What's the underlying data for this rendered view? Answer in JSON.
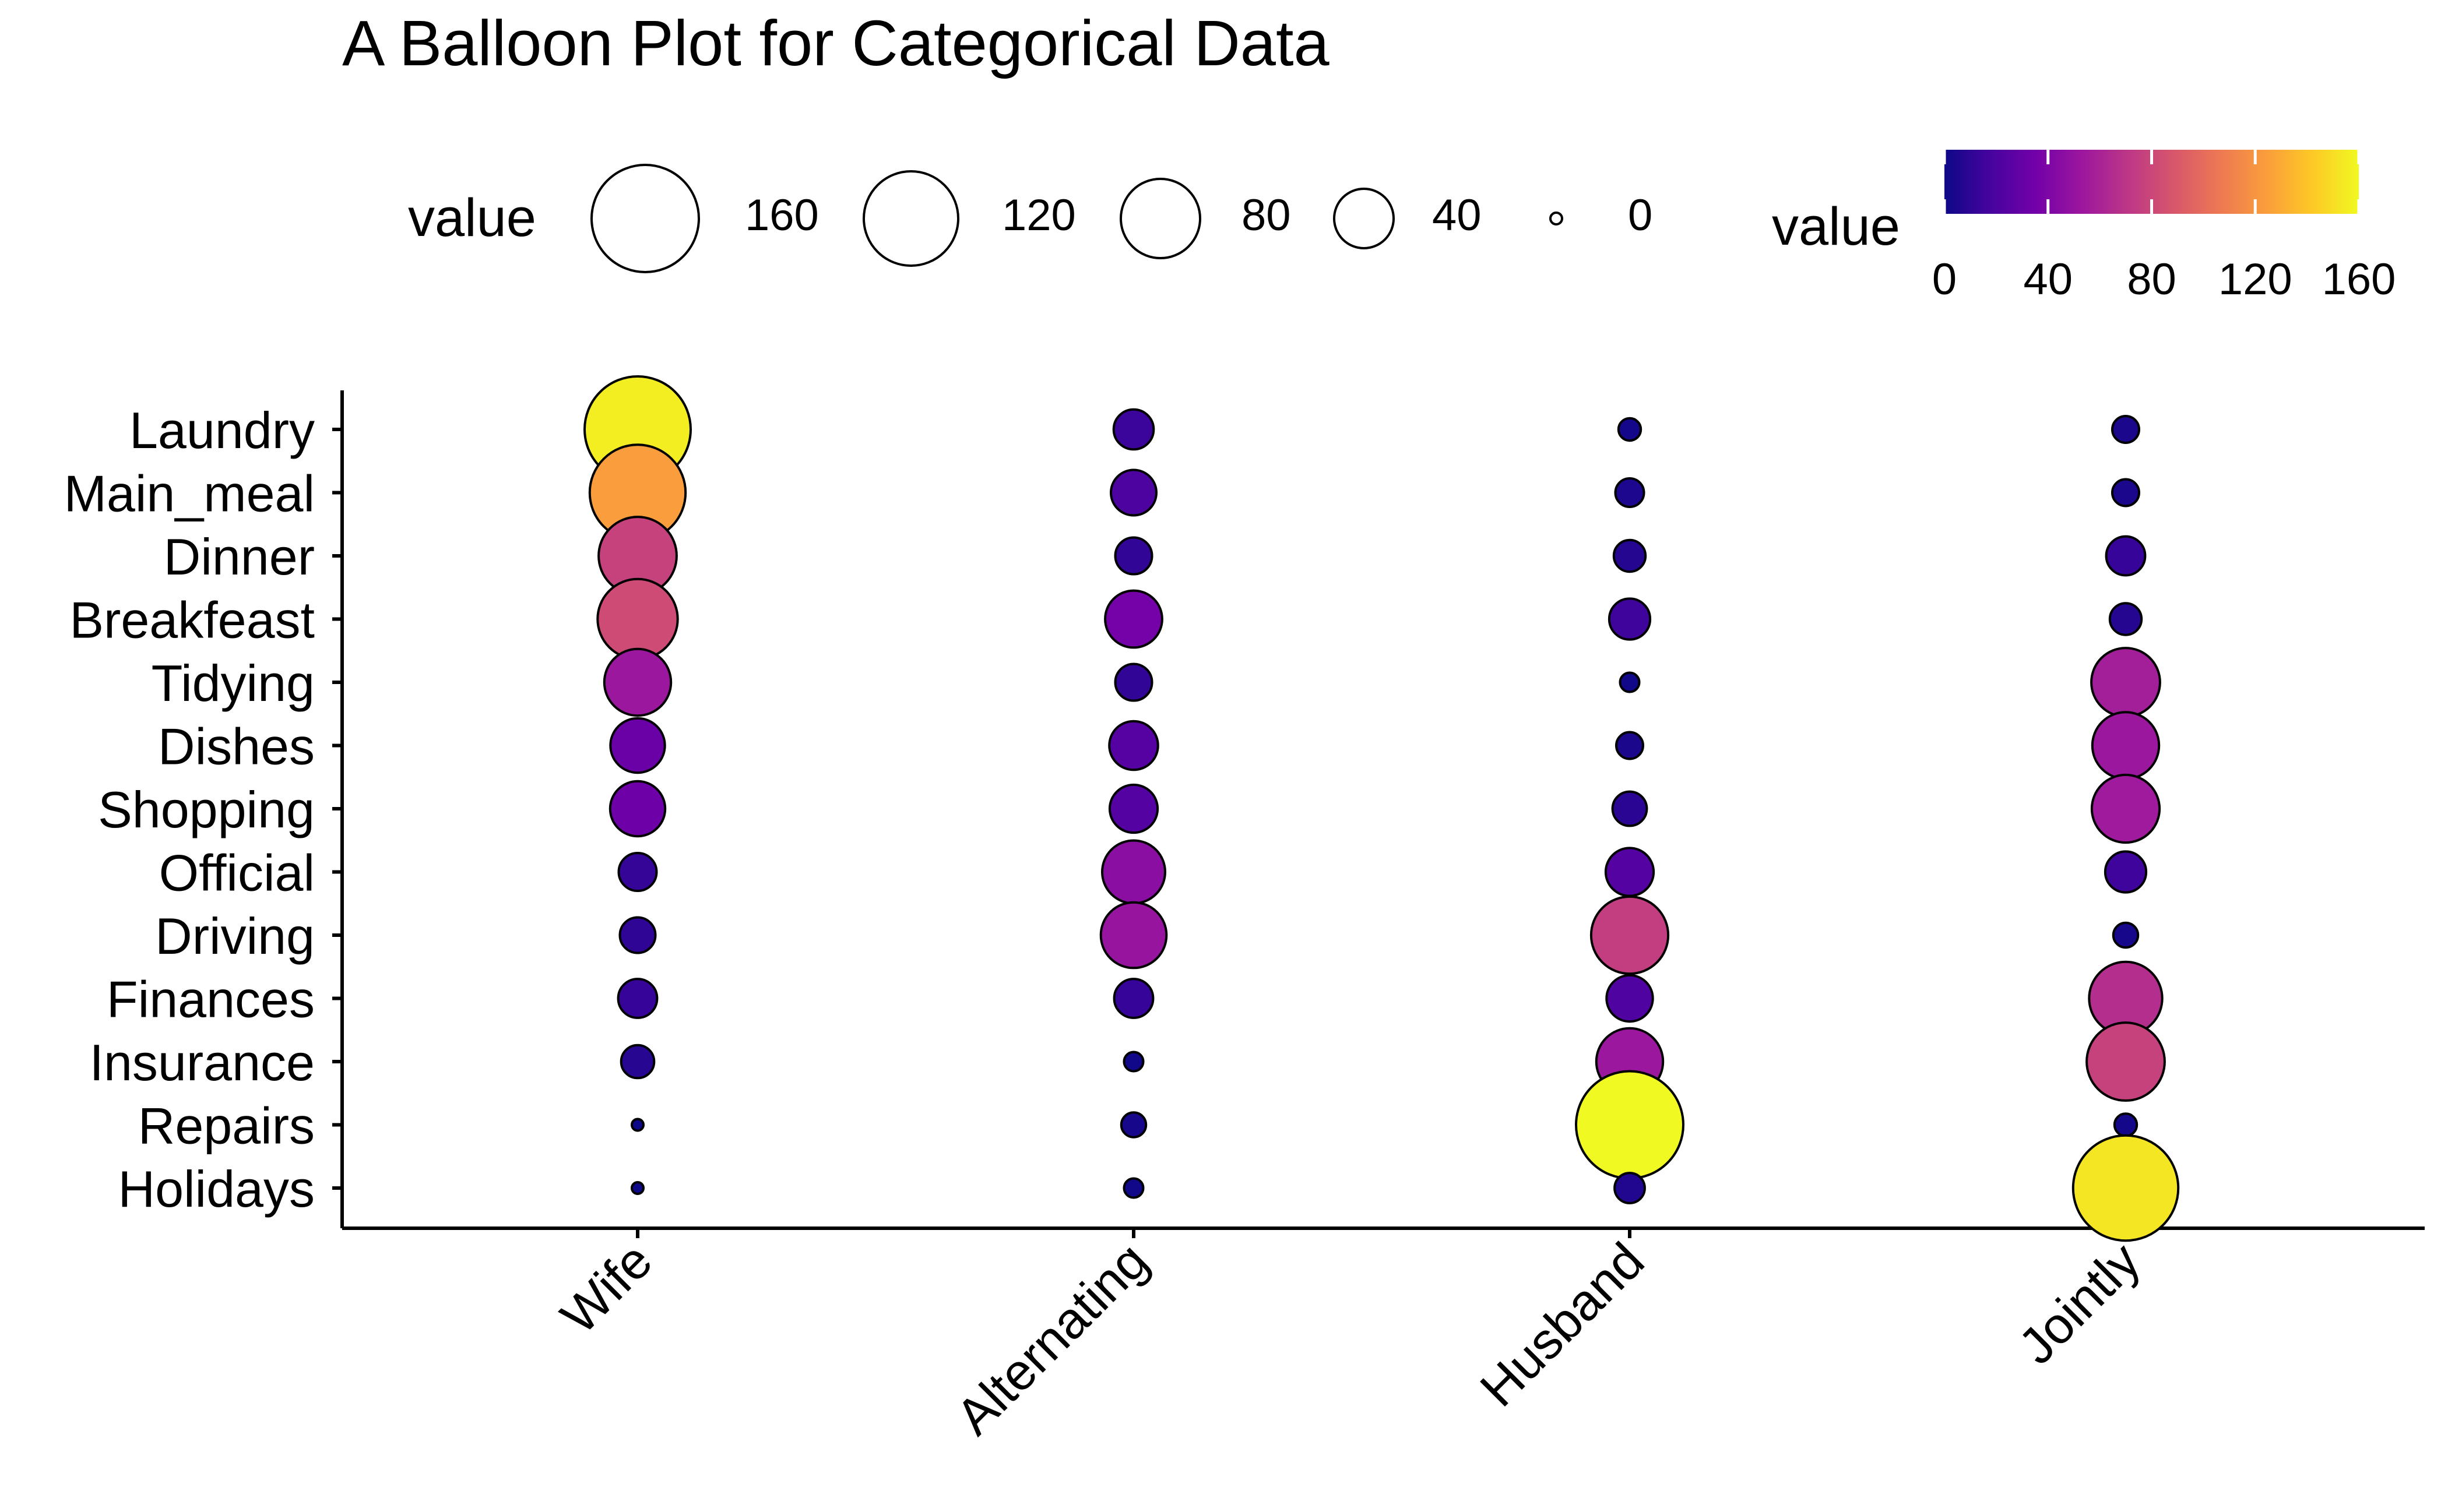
{
  "chart_data": {
    "type": "scatter",
    "subtype": "balloon",
    "title": "A Balloon Plot for Categorical Data",
    "xlabel": "",
    "ylabel": "",
    "categories_x": [
      "Wife",
      "Alternating",
      "Husband",
      "Jointly"
    ],
    "categories_y": [
      "Laundry",
      "Main_meal",
      "Dinner",
      "Breakfeast",
      "Tidying",
      "Dishes",
      "Shopping",
      "Official",
      "Driving",
      "Finances",
      "Insurance",
      "Repairs",
      "Holidays"
    ],
    "values": [
      [
        156,
        14,
        2,
        4
      ],
      [
        124,
        20,
        5,
        4
      ],
      [
        77,
        11,
        7,
        13
      ],
      [
        82,
        36,
        15,
        7
      ],
      [
        53,
        11,
        1,
        57
      ],
      [
        32,
        24,
        4,
        53
      ],
      [
        33,
        23,
        9,
        55
      ],
      [
        12,
        46,
        23,
        15
      ],
      [
        10,
        51,
        75,
        3
      ],
      [
        13,
        13,
        21,
        66
      ],
      [
        8,
        1,
        53,
        77
      ],
      [
        0,
        3,
        160,
        2
      ],
      [
        0,
        1,
        6,
        153
      ]
    ],
    "size_legend": {
      "title": "value",
      "breaks": [
        160,
        120,
        80,
        40,
        0
      ],
      "labels": [
        "160",
        "120",
        "80",
        "40",
        "0"
      ]
    },
    "color_legend": {
      "title": "value",
      "palette": "plasma",
      "ticks": [
        0,
        40,
        80,
        120,
        160
      ],
      "tick_labels": [
        "0",
        "40",
        "80",
        "120",
        "160"
      ],
      "range": [
        0,
        160
      ]
    },
    "grid": false,
    "legend_position": "top"
  },
  "colors": {
    "background": "#ffffff",
    "axis": "#000000",
    "point_stroke": "#000000",
    "plasma_stops": [
      "#0D0887",
      "#47039F",
      "#7301A8",
      "#9C179E",
      "#BD3786",
      "#D8576B",
      "#ED7953",
      "#FA9E3B",
      "#FDC926",
      "#F0F921"
    ]
  }
}
